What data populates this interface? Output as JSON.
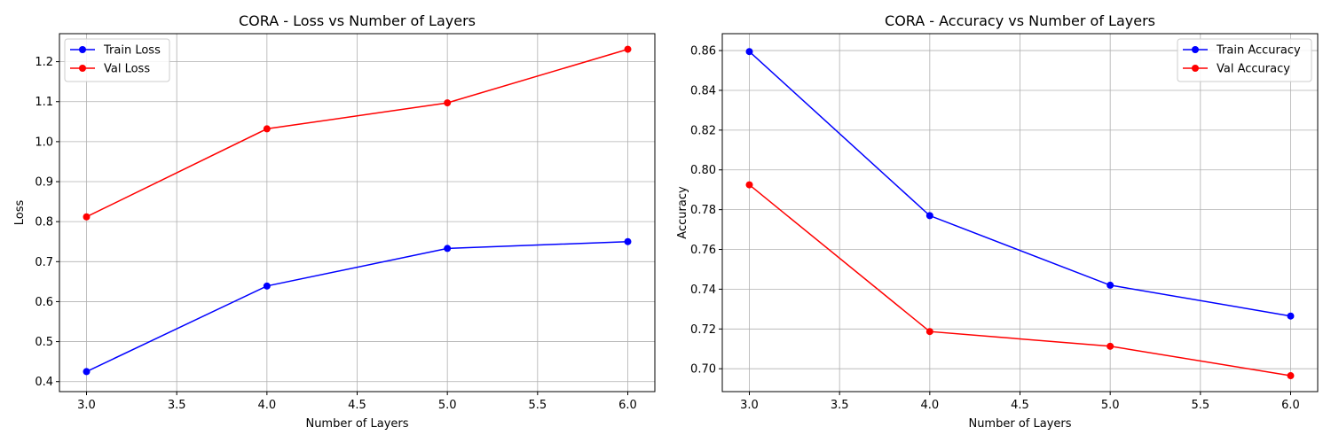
{
  "chart_data": [
    {
      "type": "line",
      "title": "CORA - Loss vs Number of Layers",
      "xlabel": "Number of Layers",
      "ylabel": "Loss",
      "xlim": [
        2.85,
        6.15
      ],
      "ylim": [
        0.375,
        1.27
      ],
      "x_ticks": [
        3.0,
        3.5,
        4.0,
        4.5,
        5.0,
        5.5,
        6.0
      ],
      "x_tick_labels": [
        "3.0",
        "3.5",
        "4.0",
        "4.5",
        "5.0",
        "5.5",
        "6.0"
      ],
      "y_ticks": [
        0.4,
        0.5,
        0.6,
        0.7,
        0.8,
        0.9,
        1.0,
        1.1,
        1.2
      ],
      "y_tick_labels": [
        "0.4",
        "0.5",
        "0.6",
        "0.7",
        "0.8",
        "0.9",
        "1.0",
        "1.1",
        "1.2"
      ],
      "grid": true,
      "legend_position": "top-left",
      "x": [
        3,
        4,
        5,
        6
      ],
      "series": [
        {
          "name": "Train Loss",
          "color": "#0000ff",
          "values": [
            0.425,
            0.639,
            0.733,
            0.75
          ]
        },
        {
          "name": "Val Loss",
          "color": "#ff0000",
          "values": [
            0.812,
            1.032,
            1.097,
            1.231
          ]
        }
      ]
    },
    {
      "type": "line",
      "title": "CORA - Accuracy vs Number of Layers",
      "xlabel": "Number of Layers",
      "ylabel": "Accuracy",
      "xlim": [
        2.85,
        6.15
      ],
      "ylim": [
        0.6885,
        0.8685
      ],
      "x_ticks": [
        3.0,
        3.5,
        4.0,
        4.5,
        5.0,
        5.5,
        6.0
      ],
      "x_tick_labels": [
        "3.0",
        "3.5",
        "4.0",
        "4.5",
        "5.0",
        "5.5",
        "6.0"
      ],
      "y_ticks": [
        0.7,
        0.72,
        0.74,
        0.76,
        0.78,
        0.8,
        0.82,
        0.84,
        0.86
      ],
      "y_tick_labels": [
        "0.70",
        "0.72",
        "0.74",
        "0.76",
        "0.78",
        "0.80",
        "0.82",
        "0.84",
        "0.86"
      ],
      "grid": true,
      "legend_position": "top-right",
      "x": [
        3,
        4,
        5,
        6
      ],
      "series": [
        {
          "name": "Train Accuracy",
          "color": "#0000ff",
          "values": [
            0.8595,
            0.777,
            0.742,
            0.7265
          ]
        },
        {
          "name": "Val Accuracy",
          "color": "#ff0000",
          "values": [
            0.7925,
            0.7187,
            0.7113,
            0.6965
          ]
        }
      ]
    }
  ]
}
